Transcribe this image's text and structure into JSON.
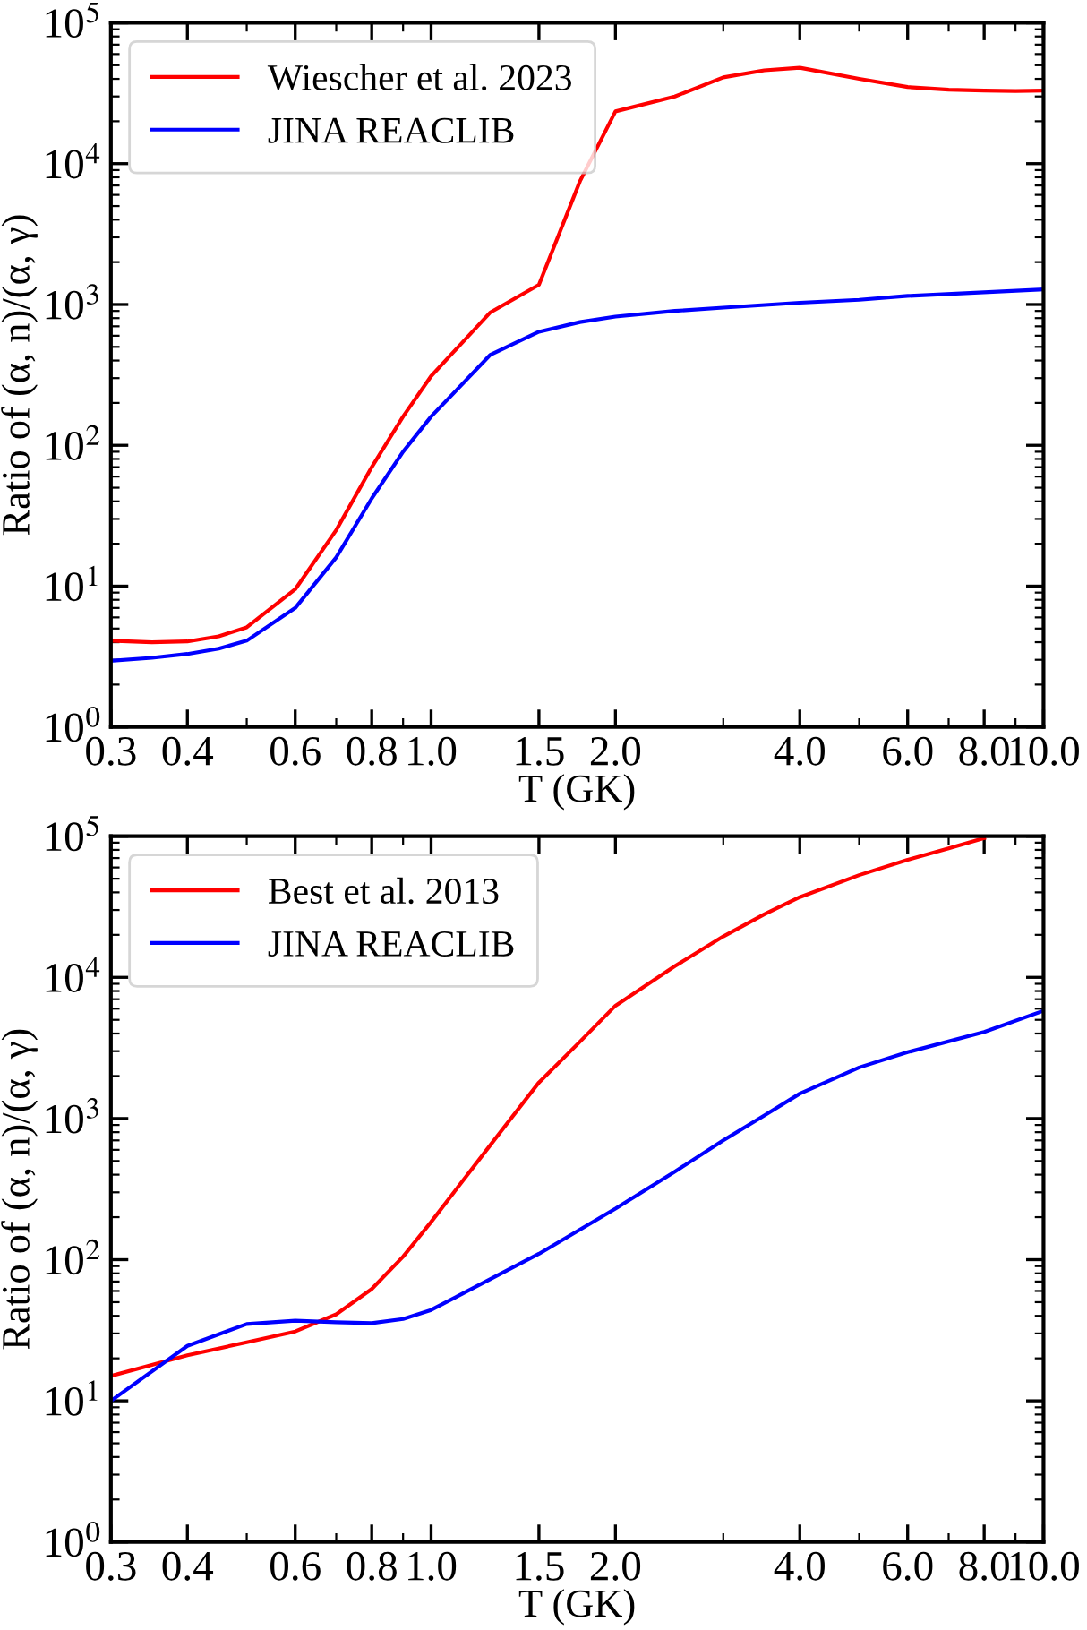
{
  "chart_data": [
    {
      "type": "line",
      "xlabel": "T (GK)",
      "ylabel": "Ratio of (α, n)/(α, γ)",
      "log": "xy",
      "legend": "top left",
      "grid": false,
      "line_style": "solid",
      "xlim": [
        0.3,
        10.0
      ],
      "ylim": [
        1,
        100000
      ],
      "xticks": [
        {
          "value": 0.3,
          "label": "0.3"
        },
        {
          "value": 0.4,
          "label": "0.4"
        },
        {
          "value": 0.6,
          "label": "0.6"
        },
        {
          "value": 0.8,
          "label": "0.8"
        },
        {
          "value": 1.0,
          "label": "1.0"
        },
        {
          "value": 1.5,
          "label": "1.5"
        },
        {
          "value": 2.0,
          "label": "2.0"
        },
        {
          "value": 4.0,
          "label": "4.0"
        },
        {
          "value": 6.0,
          "label": "6.0"
        },
        {
          "value": 8.0,
          "label": "8.0"
        },
        {
          "value": 10.0,
          "label": "10.0"
        }
      ],
      "yticks": [
        {
          "value": 1,
          "label": "10$^{0}$"
        },
        {
          "value": 10,
          "label": "10$^{1}$"
        },
        {
          "value": 100,
          "label": "10$^{2}$"
        },
        {
          "value": 1000,
          "label": "10$^{3}$"
        },
        {
          "value": 10000,
          "label": "10$^{4}$"
        },
        {
          "value": 100000,
          "label": "10$^{5}$"
        }
      ],
      "series": [
        {
          "name": "Wiescher et al. 2023",
          "color": "#ff0000",
          "x": [
            0.3,
            0.35,
            0.4,
            0.45,
            0.5,
            0.6,
            0.7,
            0.8,
            0.9,
            1.0,
            1.25,
            1.5,
            1.75,
            2.0,
            2.5,
            3.0,
            3.5,
            4.0,
            5.0,
            6.0,
            7.0,
            8.0,
            9.0,
            10.0
          ],
          "values": [
            4.1,
            4.0,
            4.05,
            4.4,
            5.1,
            9.5,
            25,
            70,
            160,
            310,
            880,
            1380,
            7500,
            23500,
            30000,
            41000,
            46000,
            48000,
            40000,
            35000,
            33500,
            33000,
            32800,
            33000
          ]
        },
        {
          "name": "JINA REACLIB",
          "color": "#0000ff",
          "x": [
            0.3,
            0.35,
            0.4,
            0.45,
            0.5,
            0.6,
            0.7,
            0.8,
            0.9,
            1.0,
            1.25,
            1.5,
            1.75,
            2.0,
            2.5,
            3.0,
            4.0,
            5.0,
            6.0,
            10.0
          ],
          "values": [
            2.95,
            3.1,
            3.3,
            3.6,
            4.1,
            7.0,
            16,
            42,
            90,
            160,
            440,
            640,
            750,
            820,
            900,
            950,
            1030,
            1080,
            1150,
            1280
          ]
        }
      ]
    },
    {
      "type": "line",
      "xlabel": "T (GK)",
      "ylabel": "Ratio of (α, n)/(α, γ)",
      "log": "xy",
      "legend": "top left",
      "grid": false,
      "line_style": "solid",
      "xlim": [
        0.3,
        10.0
      ],
      "ylim": [
        1,
        100000
      ],
      "xticks": [
        {
          "value": 0.3,
          "label": "0.3"
        },
        {
          "value": 0.4,
          "label": "0.4"
        },
        {
          "value": 0.6,
          "label": "0.6"
        },
        {
          "value": 0.8,
          "label": "0.8"
        },
        {
          "value": 1.0,
          "label": "1.0"
        },
        {
          "value": 1.5,
          "label": "1.5"
        },
        {
          "value": 2.0,
          "label": "2.0"
        },
        {
          "value": 4.0,
          "label": "4.0"
        },
        {
          "value": 6.0,
          "label": "6.0"
        },
        {
          "value": 8.0,
          "label": "8.0"
        },
        {
          "value": 10.0,
          "label": "10.0"
        }
      ],
      "yticks": [
        {
          "value": 1,
          "label": "10$^{0}$"
        },
        {
          "value": 10,
          "label": "10$^{1}$"
        },
        {
          "value": 100,
          "label": "10$^{2}$"
        },
        {
          "value": 1000,
          "label": "10$^{3}$"
        },
        {
          "value": 10000,
          "label": "10$^{4}$"
        },
        {
          "value": 100000,
          "label": "10$^{5}$"
        }
      ],
      "series": [
        {
          "name": "Best et al. 2013",
          "color": "#ff0000",
          "x": [
            0.3,
            0.4,
            0.5,
            0.6,
            0.7,
            0.8,
            0.9,
            1.0,
            1.25,
            1.5,
            1.75,
            2.0,
            2.5,
            3.0,
            3.5,
            4.0,
            5.0,
            6.0,
            7.0,
            8.0
          ],
          "values": [
            15,
            21,
            26,
            31,
            41,
            62,
            105,
            185,
            650,
            1800,
            3500,
            6300,
            12000,
            19500,
            28000,
            37000,
            53000,
            68000,
            82000,
            97000
          ]
        },
        {
          "name": "JINA REACLIB",
          "color": "#0000ff",
          "x": [
            0.3,
            0.4,
            0.5,
            0.6,
            0.7,
            0.8,
            0.9,
            1.0,
            1.5,
            2.0,
            2.5,
            3.0,
            3.5,
            4.0,
            5.0,
            6.0,
            8.0,
            10.0
          ],
          "values": [
            10,
            24.5,
            35,
            37,
            36,
            35.5,
            38,
            44,
            110,
            230,
            420,
            700,
            1050,
            1500,
            2300,
            2950,
            4100,
            5800
          ]
        }
      ]
    }
  ]
}
